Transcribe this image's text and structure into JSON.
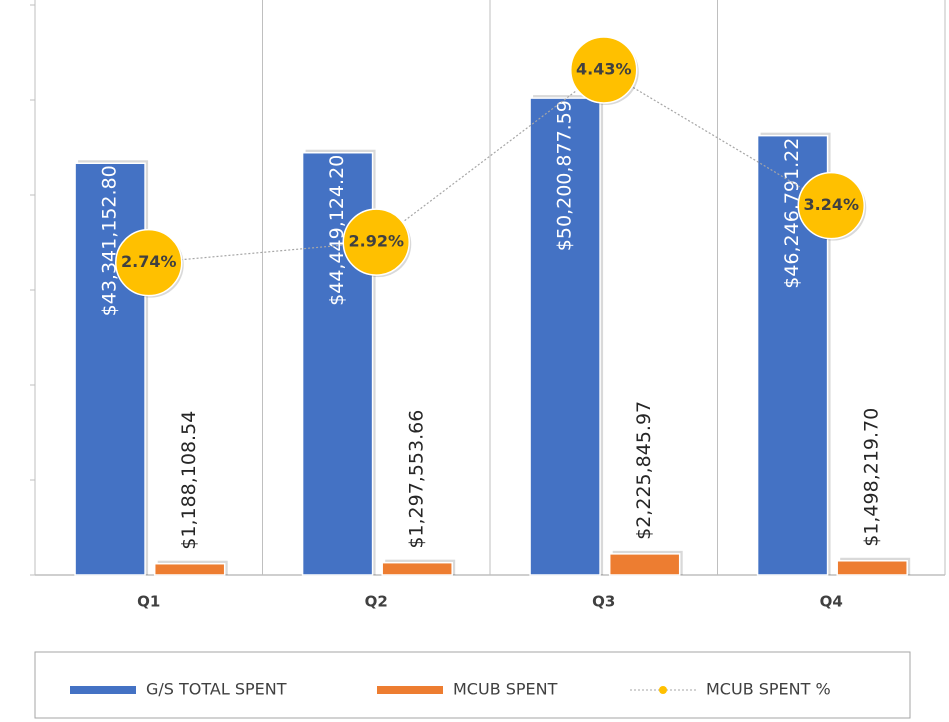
{
  "chart_data": {
    "type": "bar+line",
    "categories": [
      "Q1",
      "Q2",
      "Q3",
      "Q4"
    ],
    "series": [
      {
        "name": "G/S TOTAL SPENT",
        "color": "#4472c4",
        "type": "bar",
        "values": [
          43341152.8,
          44449124.2,
          50200877.59,
          46246791.22
        ],
        "value_labels": [
          "$43,341,152.80",
          "$44,449,124.20",
          "$50,200,877.59",
          "$46,246,791.22"
        ]
      },
      {
        "name": "MCUB SPENT",
        "color": "#ed7d31",
        "type": "bar",
        "values": [
          1188108.54,
          1297553.66,
          2225845.97,
          1498219.7
        ],
        "value_labels": [
          "$1,188,108.54",
          "$1,297,553.66",
          "$2,225,845.97",
          "$1,498,219.70"
        ]
      },
      {
        "name": "MCUB SPENT %",
        "color": "#ffc000",
        "type": "line",
        "axis": "y2",
        "values": [
          2.74,
          2.92,
          4.43,
          3.24
        ],
        "value_labels": [
          "2.74%",
          "2.92%",
          "4.43%",
          "3.24%"
        ]
      }
    ],
    "ylim": [
      0,
      60000000
    ],
    "yticks": [
      0,
      10000000,
      20000000,
      30000000,
      40000000,
      50000000,
      60000000
    ],
    "y2lim": [
      0,
      5
    ],
    "grid": "vertical",
    "legend": "bottom"
  }
}
